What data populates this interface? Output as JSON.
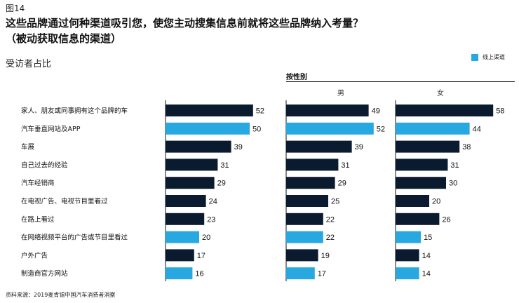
{
  "figure_label": "图14",
  "title_line1": "这些品牌通过何种渠道吸引您，使您主动搜集信息前就将这些品牌纳入考量？",
  "title_line2": "（被动获取信息的渠道）",
  "subtitle": "受访者占比",
  "group_label": "按性别",
  "legend_label": "线上渠道",
  "source": "资料来源：2019麦肯锡中国汽车消费者洞察",
  "colors": {
    "offline": "#0b1b2f",
    "online": "#28a8e0"
  },
  "chart_data": {
    "type": "bar",
    "orientation": "horizontal",
    "categories": [
      "家人、朋友或同事拥有这个品牌的车",
      "汽车垂直网站及APP",
      "车展",
      "自己过去的经验",
      "汽车经销商",
      "在电视广告、电视节目里看过",
      "在路上看过",
      "在网络视频平台的广告或节目里看过",
      "户外广告",
      "制造商官方网站"
    ],
    "online": [
      false,
      true,
      false,
      false,
      false,
      false,
      false,
      true,
      false,
      true
    ],
    "legend": {
      "online": "线上渠道",
      "position": "top-right"
    },
    "series": [
      {
        "values": [
          52,
          50,
          39,
          31,
          29,
          24,
          23,
          20,
          17,
          16
        ]
      },
      {
        "name": "男",
        "values": [
          49,
          52,
          39,
          31,
          29,
          25,
          22,
          22,
          19,
          17
        ]
      },
      {
        "name": "女",
        "values": [
          58,
          44,
          38,
          31,
          30,
          20,
          26,
          15,
          14,
          14
        ]
      }
    ],
    "xlim": [
      0,
      60
    ],
    "grid": false
  }
}
